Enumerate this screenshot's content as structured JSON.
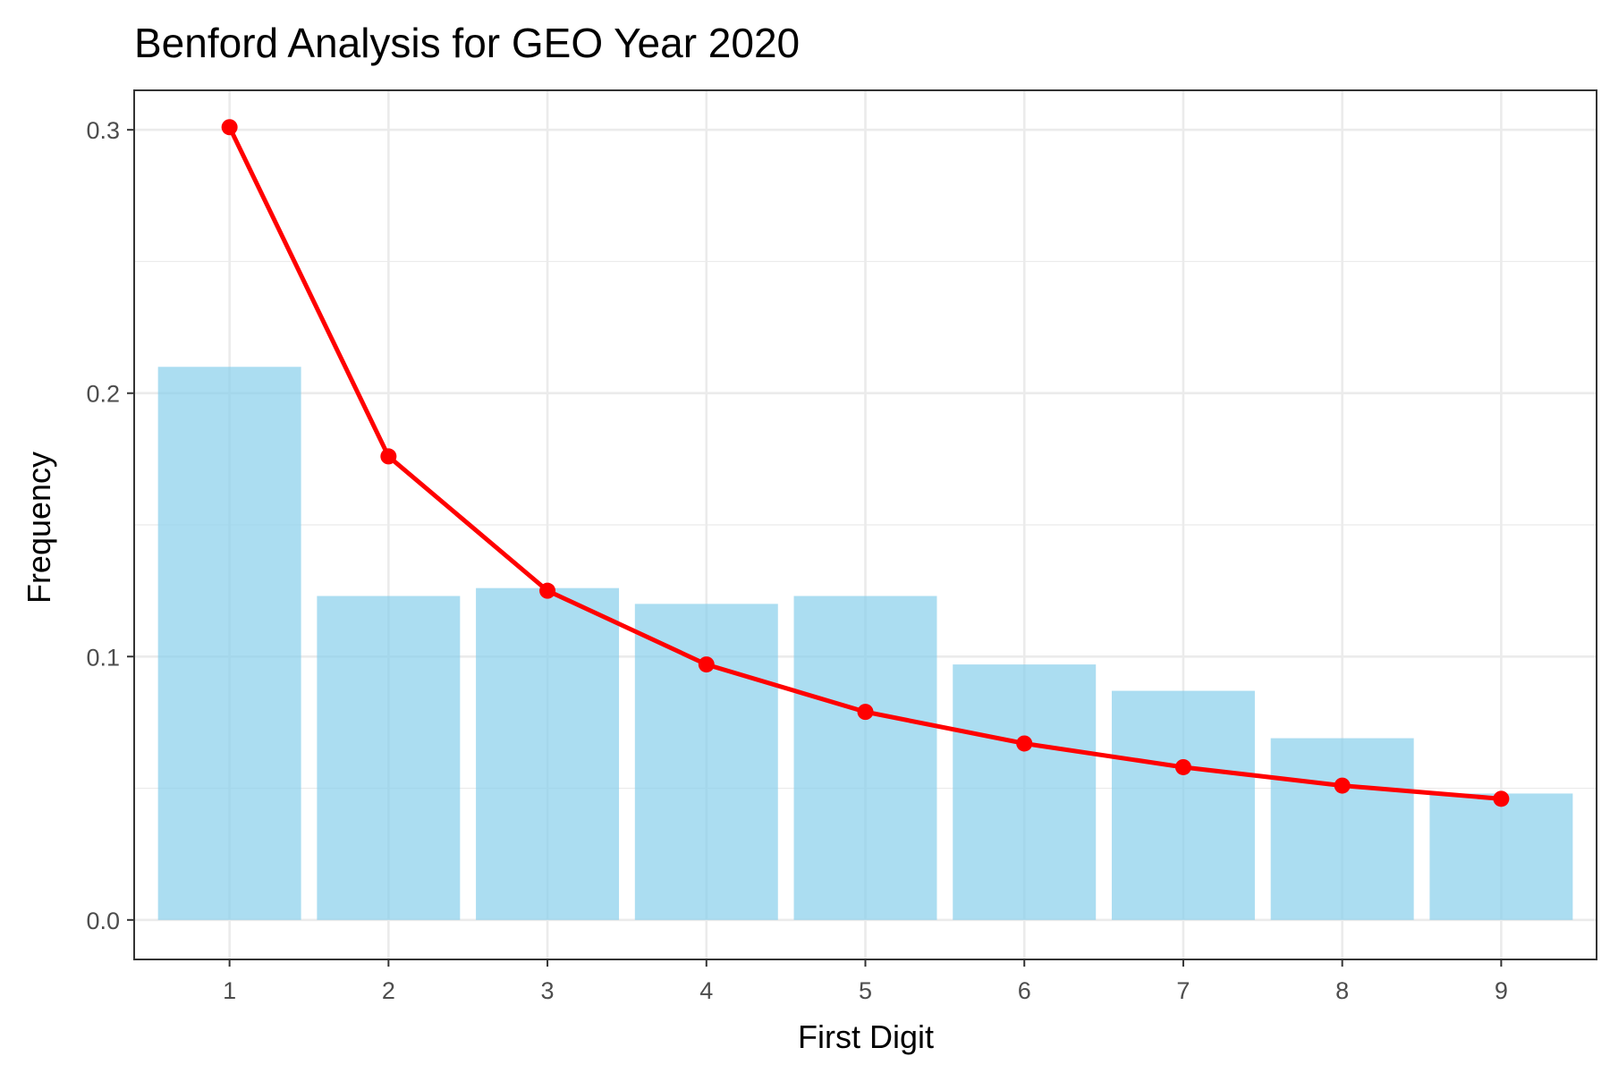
{
  "chart_data": {
    "type": "bar",
    "title": "Benford Analysis for GEO Year 2020",
    "xlabel": "First Digit",
    "ylabel": "Frequency",
    "categories": [
      "1",
      "2",
      "3",
      "4",
      "5",
      "6",
      "7",
      "8",
      "9"
    ],
    "x_ticks": [
      "1",
      "2",
      "3",
      "4",
      "5",
      "6",
      "7",
      "8",
      "9"
    ],
    "y_ticks": [
      "0.0",
      "0.1",
      "0.2",
      "0.3"
    ],
    "ylim": [
      -0.015,
      0.315
    ],
    "grid": true,
    "legend": "none",
    "series": [
      {
        "type": "bar",
        "values": [
          0.21,
          0.123,
          0.126,
          0.12,
          0.123,
          0.097,
          0.087,
          0.069,
          0.048
        ],
        "color": "#87CEEB"
      },
      {
        "type": "line",
        "values": [
          0.301,
          0.176,
          0.125,
          0.097,
          0.079,
          0.067,
          0.058,
          0.051,
          0.046
        ],
        "color": "#FF0000"
      }
    ]
  }
}
